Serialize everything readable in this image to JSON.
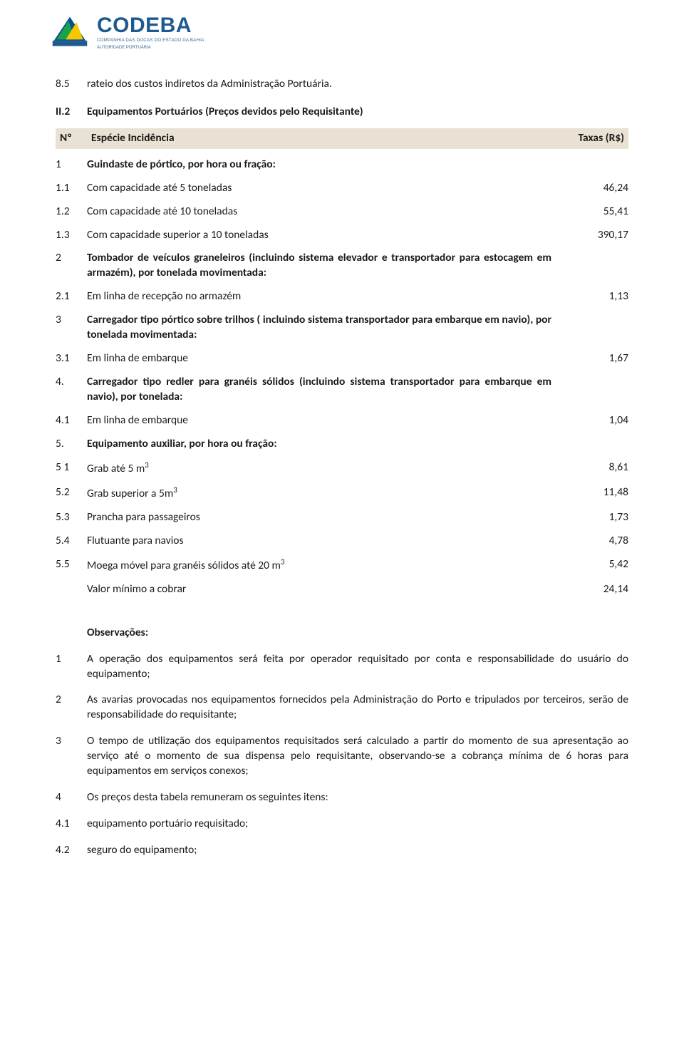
{
  "logo": {
    "name": "CODEBA",
    "sub": "COMPANHIA DAS DOCAS DO ESTADO DA BAHIA",
    "auth": "AUTORIDADE PORTUÁRIA",
    "colors": {
      "blue": "#1e5a8f",
      "green": "#1aa24a",
      "yellow": "#f7c800",
      "darkblue": "#0a4f8f"
    }
  },
  "section85": {
    "num": "8.5",
    "text": "rateio dos custos indiretos da Administração Portuária."
  },
  "sectionII2": {
    "num": "II.2",
    "text": "Equipamentos Portuários (Preços devidos pelo Requisitante)"
  },
  "header": {
    "col1": "Nº",
    "col2": "Espécie Incidência",
    "col3": "Taxas (R$)"
  },
  "items": [
    {
      "num": "1",
      "desc": "Guindaste de pórtico, por hora ou fração:",
      "val": "",
      "bold": true
    },
    {
      "num": "1.1",
      "desc": "Com capacidade até 5 toneladas",
      "val": "46,24"
    },
    {
      "num": "1.2",
      "desc": "Com capacidade até 10 toneladas",
      "val": "55,41"
    },
    {
      "num": "1.3",
      "desc": "Com capacidade superior a 10 toneladas",
      "val": "390,17"
    },
    {
      "num": "2",
      "desc": "Tombador de veículos graneleiros (incluindo sistema elevador e transportador para estocagem em armazém), por tonelada movimentada:",
      "val": "",
      "bold": true,
      "justify": true
    },
    {
      "num": "2.1",
      "desc": "Em linha de recepção no armazém",
      "val": "1,13"
    },
    {
      "num": "3",
      "desc": "Carregador tipo pórtico sobre trilhos ( incluindo sistema transportador para embarque em navio), por tonelada movimentada:",
      "val": "",
      "bold": true,
      "justify": true
    },
    {
      "num": "3.1",
      "desc": "Em linha de embarque",
      "val": "1,67"
    },
    {
      "num": "4.",
      "desc": "Carregador tipo redler para granéis sólidos (incluindo sistema transportador para embarque em navio), por tonelada:",
      "val": "",
      "bold": true,
      "justify": true
    },
    {
      "num": "4.1",
      "desc": "Em linha de embarque",
      "val": "1,04"
    },
    {
      "num": "5.",
      "desc": "Equipamento auxiliar, por hora ou fração:",
      "val": "",
      "bold": true
    },
    {
      "num": "5 1",
      "desc": "Grab até 5 m<sup>3</sup>",
      "val": "8,61",
      "html": true
    },
    {
      "num": "5.2",
      "desc": "Grab superior a 5m<sup>3</sup>",
      "val": "11,48",
      "html": true
    },
    {
      "num": "5.3",
      "desc": "Prancha para passageiros",
      "val": "1,73"
    },
    {
      "num": "5.4",
      "desc": "Flutuante para navios",
      "val": "4,78"
    },
    {
      "num": "5.5",
      "desc": "Moega móvel para granéis sólidos até 20 m<sup>3</sup>",
      "val": "5,42",
      "html": true
    },
    {
      "num": "",
      "desc": "Valor mínimo a cobrar",
      "val": "24,14"
    }
  ],
  "obs": {
    "title": "Observações:",
    "list": [
      {
        "num": "1",
        "text": "A operação dos equipamentos será feita por operador requisitado por conta e responsabilidade do usuário do equipamento;"
      },
      {
        "num": "2",
        "text": "As avarias provocadas nos equipamentos fornecidos pela Administração do Porto e tripulados por terceiros, serão de responsabilidade do requisitante;"
      },
      {
        "num": "3",
        "text": "O tempo de utilização dos equipamentos requisitados será calculado a partir do momento de sua apresentação ao serviço até o momento de sua dispensa pelo requisitante, observando-se a cobrança mínima de 6 horas para equipamentos em serviços conexos;"
      },
      {
        "num": "4",
        "text": "Os preços desta tabela remuneram os seguintes itens:"
      }
    ],
    "sub": [
      {
        "num": "4.1",
        "text": "equipamento portuário requisitado;"
      },
      {
        "num": "4.2",
        "text": "seguro do equipamento;"
      }
    ]
  }
}
